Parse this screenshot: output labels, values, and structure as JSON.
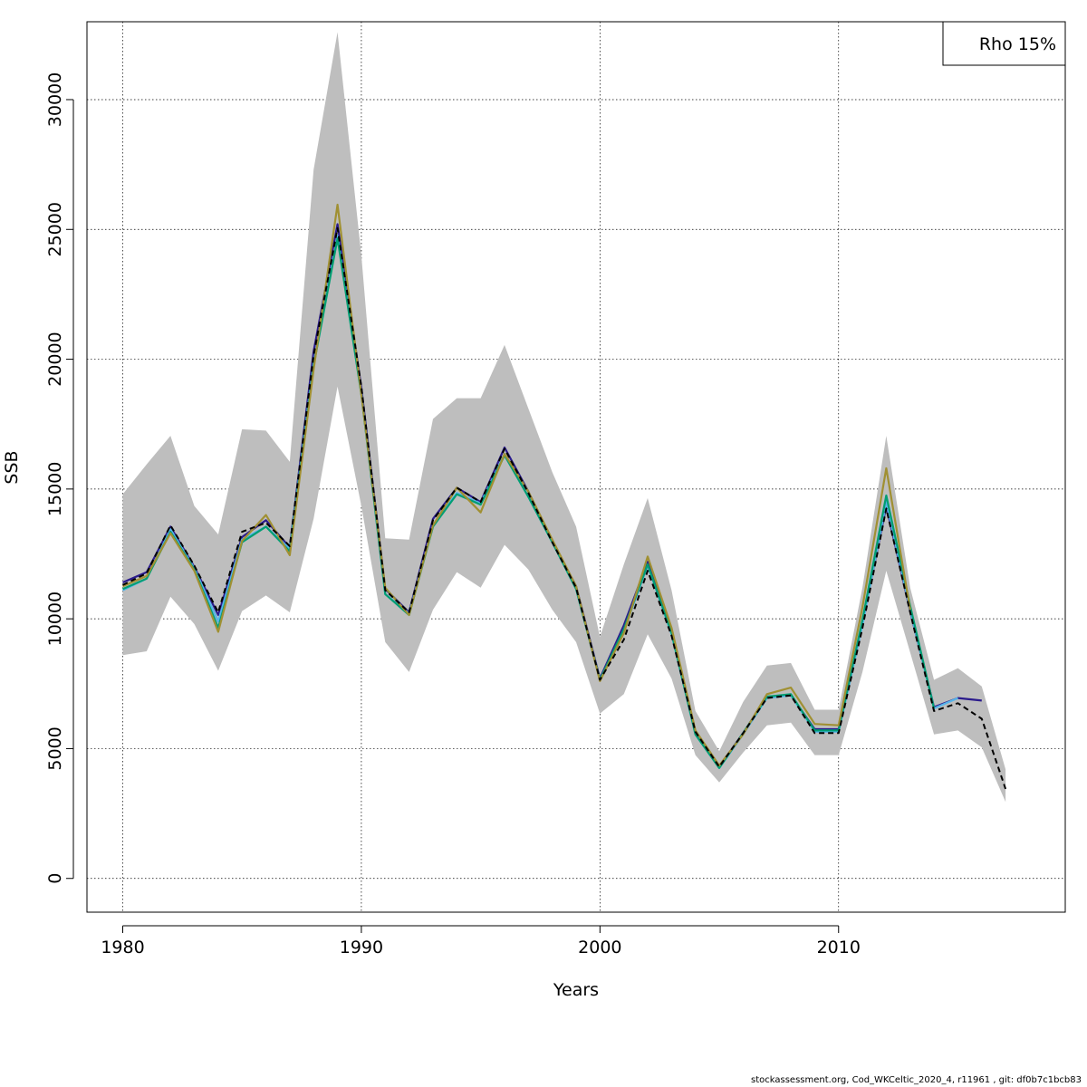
{
  "chart_data": {
    "type": "line",
    "title": "",
    "xlabel": "Years",
    "ylabel": "SSB",
    "xlim": [
      1978.5,
      2019.5
    ],
    "ylim": [
      -1300,
      33000
    ],
    "x_ticks": [
      "1980",
      "1990",
      "2000",
      "2010"
    ],
    "y_ticks": [
      "0",
      "5000",
      "10000",
      "15000",
      "20000",
      "25000",
      "30000"
    ],
    "grid": true,
    "legend": {
      "text": "Rho 15%",
      "position": "top-right"
    },
    "band": {
      "color": "#bebebe",
      "x": [
        1980,
        1981,
        1982,
        1983,
        1984,
        1985,
        1986,
        1987,
        1988,
        1989,
        1990,
        1991,
        1992,
        1993,
        1994,
        1995,
        1996,
        1997,
        1998,
        1999,
        2000,
        2001,
        2002,
        2003,
        2004,
        2005,
        2006,
        2007,
        2008,
        2009,
        2010,
        2011,
        2012,
        2013,
        2014,
        2015,
        2016,
        2017
      ],
      "upper": [
        14800,
        15950,
        17050,
        14350,
        13250,
        17300,
        17250,
        16050,
        27300,
        32600,
        24000,
        13100,
        13050,
        17700,
        18500,
        18500,
        20550,
        18100,
        15650,
        13550,
        9300,
        12100,
        14650,
        11100,
        6450,
        4900,
        6800,
        8200,
        8300,
        6500,
        6500,
        11200,
        17050,
        11200,
        7650,
        8100,
        7400,
        4200
      ],
      "lower": [
        8600,
        8750,
        10850,
        9800,
        8000,
        10300,
        10900,
        10250,
        13850,
        18950,
        14350,
        9100,
        7950,
        10350,
        11800,
        11200,
        12850,
        11900,
        10350,
        9100,
        6350,
        7100,
        9400,
        7700,
        4750,
        3700,
        4850,
        5900,
        6000,
        4750,
        4750,
        7950,
        11850,
        8700,
        5550,
        5700,
        5050,
        2950
      ]
    },
    "series": [
      {
        "color": "#000000",
        "dashed": true,
        "x": [
          1980,
          1981,
          1982,
          1983,
          1984,
          1985,
          1986,
          1987,
          1988,
          1989,
          1990,
          1991,
          1992,
          1993,
          1994,
          1995,
          1996,
          1997,
          1998,
          1999,
          2000,
          2001,
          2002,
          2003,
          2004,
          2005,
          2006,
          2007,
          2008,
          2009,
          2010,
          2011,
          2012,
          2013,
          2014,
          2015,
          2016,
          2017
        ],
        "values": [
          11300,
          11750,
          13600,
          12050,
          10250,
          13350,
          13700,
          12800,
          20150,
          25050,
          18950,
          11100,
          10250,
          13800,
          15050,
          14500,
          16550,
          14850,
          12950,
          11200,
          7650,
          9200,
          11850,
          9350,
          5650,
          4300,
          5600,
          6950,
          7050,
          5600,
          5600,
          9650,
          14250,
          10250,
          6450,
          6750,
          6150,
          3450
        ]
      },
      {
        "color": "#2b1b8c",
        "x": [
          1980,
          1981,
          1982,
          1983,
          1984,
          1985,
          1986,
          1987,
          1988,
          1989,
          1990,
          1991,
          1992,
          1993,
          1994,
          1995,
          1996,
          1997,
          1998,
          1999,
          2000,
          2001,
          2002,
          2003,
          2004,
          2005,
          2006,
          2007,
          2008,
          2009,
          2010,
          2011,
          2012,
          2013,
          2014,
          2015,
          2016
        ],
        "values": [
          11400,
          11800,
          13550,
          12000,
          10150,
          13150,
          13800,
          12750,
          20300,
          25200,
          18900,
          11150,
          10250,
          13850,
          15050,
          14500,
          16600,
          14900,
          13000,
          11250,
          7700,
          9750,
          12200,
          9500,
          5600,
          4300,
          5600,
          7000,
          7050,
          5750,
          5750,
          9850,
          14350,
          10300,
          6600,
          6950,
          6850
        ]
      },
      {
        "color": "#56b4e9",
        "x": [
          1980,
          1981,
          1982,
          1983,
          1984,
          1985,
          1986,
          1987,
          1988,
          1989,
          1990,
          1991,
          1992,
          1993,
          1994,
          1995,
          1996,
          1997,
          1998,
          1999,
          2000,
          2001,
          2002,
          2003,
          2004,
          2005,
          2006,
          2007,
          2008,
          2009,
          2010,
          2011,
          2012,
          2013,
          2014,
          2015
        ],
        "values": [
          11100,
          11550,
          13450,
          11950,
          9900,
          13050,
          13550,
          12700,
          19850,
          24750,
          18700,
          10950,
          10200,
          13600,
          14850,
          14450,
          16350,
          14700,
          12950,
          11150,
          7650,
          9550,
          12050,
          9400,
          5550,
          4250,
          5550,
          6950,
          7050,
          5650,
          5650,
          9750,
          14500,
          10350,
          6550,
          6950
        ]
      },
      {
        "color": "#009e73",
        "x": [
          1980,
          1981,
          1982,
          1983,
          1984,
          1985,
          1986,
          1987,
          1988,
          1989,
          1990,
          1991,
          1992,
          1993,
          1994,
          1995,
          1996,
          1997,
          1998,
          1999,
          2000,
          2001,
          2002,
          2003,
          2004,
          2005,
          2006,
          2007,
          2008,
          2009,
          2010,
          2011,
          2012,
          2013,
          2014
        ],
        "values": [
          11150,
          11550,
          13350,
          11900,
          9650,
          12950,
          13550,
          12600,
          19750,
          24650,
          18650,
          10950,
          10150,
          13550,
          14800,
          14400,
          16300,
          14700,
          12950,
          11150,
          7650,
          9600,
          12100,
          9450,
          5550,
          4250,
          5600,
          7000,
          7100,
          5700,
          5700,
          9950,
          14750,
          10500,
          6550
        ]
      },
      {
        "color": "#a09032",
        "x": [
          1980,
          1981,
          1982,
          1983,
          1984,
          1985,
          1986,
          1987,
          1988,
          1989,
          1990,
          1991,
          1992,
          1993,
          1994,
          1995,
          1996,
          1997,
          1998,
          1999,
          2000,
          2001,
          2002,
          2003,
          2004,
          2005,
          2006,
          2007,
          2008,
          2009,
          2010,
          2011,
          2012,
          2013
        ],
        "values": [
          11250,
          11650,
          13300,
          11850,
          9500,
          13000,
          14000,
          12450,
          19600,
          25950,
          18650,
          11200,
          10150,
          13600,
          15050,
          14100,
          16350,
          14900,
          13050,
          11250,
          7600,
          9450,
          12400,
          9650,
          5700,
          4350,
          5550,
          7100,
          7350,
          5950,
          5900,
          10450,
          15800,
          10350
        ]
      }
    ]
  },
  "footer": "stockassessment.org, Cod_WKCeltic_2020_4, r11961 , git: df0b7c1bcb83"
}
